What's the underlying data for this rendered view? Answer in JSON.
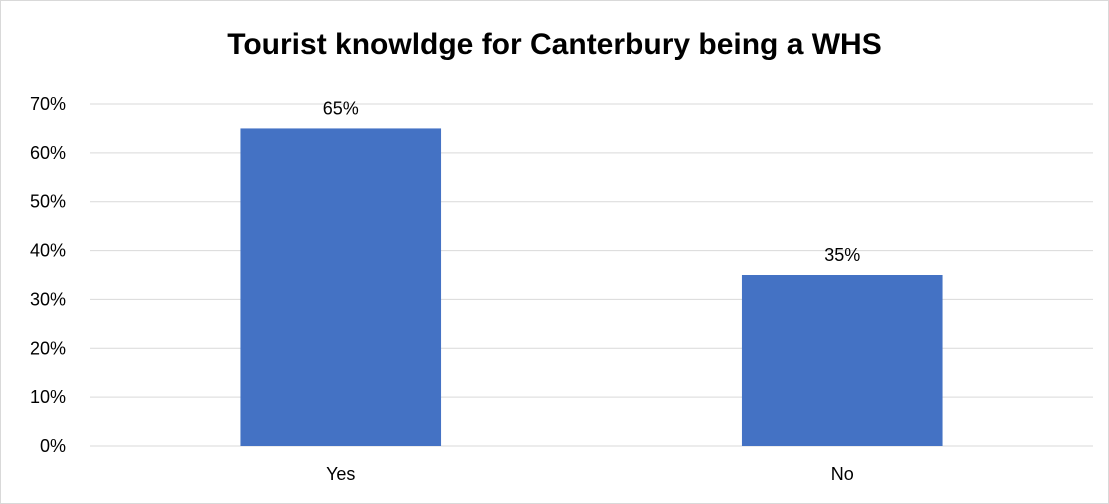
{
  "chart_data": {
    "type": "bar",
    "title": "Tourist knowldge for Canterbury being a WHS",
    "categories": [
      "Yes",
      "No"
    ],
    "values": [
      0.65,
      0.35
    ],
    "data_labels": [
      "65%",
      "35%"
    ],
    "ylim": [
      0,
      0.7
    ],
    "yticks": [
      "0%",
      "10%",
      "20%",
      "30%",
      "40%",
      "50%",
      "60%",
      "70%"
    ],
    "grid": true,
    "legend": "none",
    "bar_color": "#4472C4"
  }
}
